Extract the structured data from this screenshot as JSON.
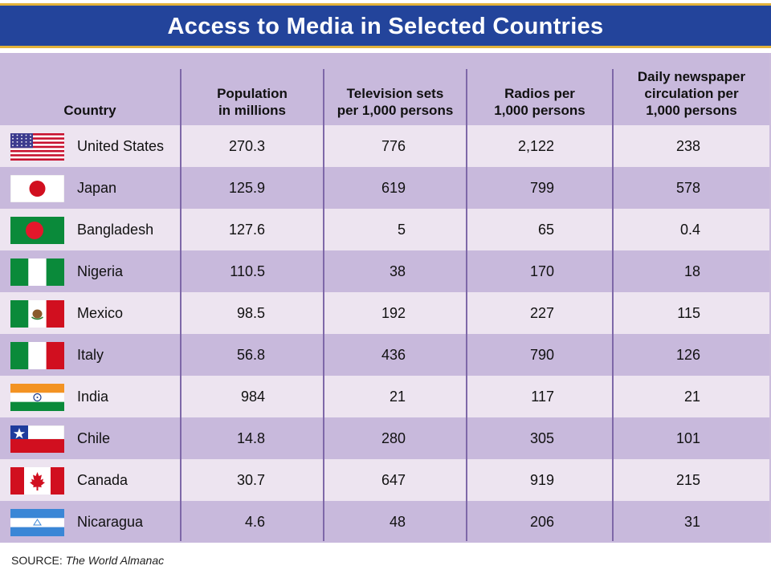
{
  "title": "Access to Media in Selected Countries",
  "source_label": "SOURCE:",
  "source_name": "The World Almanac",
  "colors": {
    "title_bg": "#23449b",
    "title_accent": "#e2b23a",
    "header_bg": "#c8b9dc",
    "row_light": "#ede4f0",
    "row_dark": "#c8b9dc",
    "divider": "#7e68a8"
  },
  "chart_data": {
    "type": "table",
    "title": "Access to Media in Selected Countries",
    "columns": [
      "Country",
      "Population in millions",
      "Television sets per 1,000 persons",
      "Radios per 1,000 persons",
      "Daily newspaper circulation per 1,000 persons"
    ],
    "header_lines": [
      [
        "Country"
      ],
      [
        "Population",
        "in millions"
      ],
      [
        "Television sets",
        "per 1,000 persons"
      ],
      [
        "Radios per",
        "1,000 persons"
      ],
      [
        "Daily newspaper",
        "circulation per",
        "1,000 persons"
      ]
    ],
    "rows": [
      {
        "country": "United States",
        "flag": "us-flag-icon",
        "population": "270.3",
        "tv": "776",
        "radios": "2,122",
        "newspaper": "238"
      },
      {
        "country": "Japan",
        "flag": "japan-flag-icon",
        "population": "125.9",
        "tv": "619",
        "radios": "799",
        "newspaper": "578"
      },
      {
        "country": "Bangladesh",
        "flag": "bangladesh-flag-icon",
        "population": "127.6",
        "tv": "5",
        "radios": "65",
        "newspaper": "0.4"
      },
      {
        "country": "Nigeria",
        "flag": "nigeria-flag-icon",
        "population": "110.5",
        "tv": "38",
        "radios": "170",
        "newspaper": "18"
      },
      {
        "country": "Mexico",
        "flag": "mexico-flag-icon",
        "population": "98.5",
        "tv": "192",
        "radios": "227",
        "newspaper": "115"
      },
      {
        "country": "Italy",
        "flag": "italy-flag-icon",
        "population": "56.8",
        "tv": "436",
        "radios": "790",
        "newspaper": "126"
      },
      {
        "country": "India",
        "flag": "india-flag-icon",
        "population": "984",
        "tv": "21",
        "radios": "117",
        "newspaper": "21"
      },
      {
        "country": "Chile",
        "flag": "chile-flag-icon",
        "population": "14.8",
        "tv": "280",
        "radios": "305",
        "newspaper": "101"
      },
      {
        "country": "Canada",
        "flag": "canada-flag-icon",
        "population": "30.7",
        "tv": "647",
        "radios": "919",
        "newspaper": "215"
      },
      {
        "country": "Nicaragua",
        "flag": "nicaragua-flag-icon",
        "population": "4.6",
        "tv": "48",
        "radios": "206",
        "newspaper": "31"
      }
    ]
  }
}
